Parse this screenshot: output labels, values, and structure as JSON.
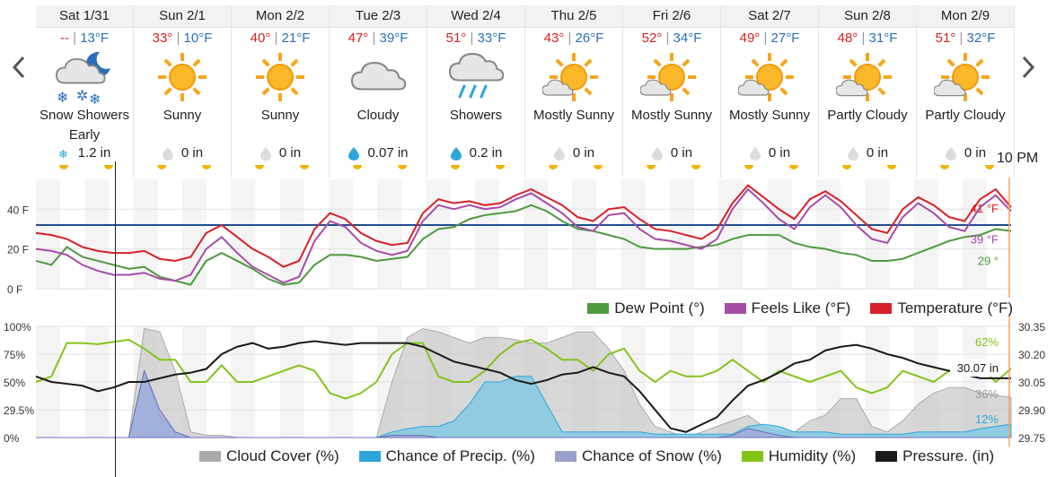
{
  "forecast": {
    "days": [
      {
        "date": "Sat 1/31",
        "hi": "--",
        "lo": "13°F",
        "cond": "Snow Showers",
        "cond2": "Early",
        "precip": "1.2 in",
        "precip_icon": "snowflake-icon",
        "icon": "snow-showers-night-icon"
      },
      {
        "date": "Sun 2/1",
        "hi": "33°",
        "lo": "10°F",
        "cond": "Sunny",
        "cond2": "",
        "precip": "0 in",
        "precip_icon": "dry-drop-icon",
        "icon": "sunny-icon"
      },
      {
        "date": "Mon 2/2",
        "hi": "40°",
        "lo": "21°F",
        "cond": "Sunny",
        "cond2": "",
        "precip": "0 in",
        "precip_icon": "dry-drop-icon",
        "icon": "sunny-icon"
      },
      {
        "date": "Tue 2/3",
        "hi": "47°",
        "lo": "39°F",
        "cond": "Cloudy",
        "cond2": "",
        "precip": "0.07 in",
        "precip_icon": "rain-drop-icon",
        "icon": "cloudy-icon"
      },
      {
        "date": "Wed 2/4",
        "hi": "51°",
        "lo": "33°F",
        "cond": "Showers",
        "cond2": "",
        "precip": "0.2 in",
        "precip_icon": "rain-drop-icon",
        "icon": "showers-icon"
      },
      {
        "date": "Thu 2/5",
        "hi": "43°",
        "lo": "26°F",
        "cond": "Mostly Sunny",
        "cond2": "",
        "precip": "0 in",
        "precip_icon": "dry-drop-icon",
        "icon": "mostly-sunny-icon"
      },
      {
        "date": "Fri 2/6",
        "hi": "52°",
        "lo": "34°F",
        "cond": "Mostly Sunny",
        "cond2": "",
        "precip": "0 in",
        "precip_icon": "dry-drop-icon",
        "icon": "mostly-sunny-icon"
      },
      {
        "date": "Sat 2/7",
        "hi": "49°",
        "lo": "27°F",
        "cond": "Mostly Sunny",
        "cond2": "",
        "precip": "0 in",
        "precip_icon": "dry-drop-icon",
        "icon": "mostly-sunny-icon"
      },
      {
        "date": "Sun 2/8",
        "hi": "48°",
        "lo": "31°F",
        "cond": "Partly Cloudy",
        "cond2": "",
        "precip": "0 in",
        "precip_icon": "dry-drop-icon",
        "icon": "partly-cloudy-icon"
      },
      {
        "date": "Mon 2/9",
        "hi": "51°",
        "lo": "32°F",
        "cond": "Partly Cloudy",
        "cond2": "",
        "precip": "0 in",
        "precip_icon": "dry-drop-icon",
        "icon": "partly-cloudy-icon"
      }
    ],
    "current_time": "10 PM"
  },
  "legend_temp": [
    {
      "label": "Dew Point (°)",
      "color": "#4e9a3f"
    },
    {
      "label": "Feels Like (°F)",
      "color": "#a64ca6"
    },
    {
      "label": "Temperature (°F)",
      "color": "#d7202a"
    }
  ],
  "legend_multi": [
    {
      "label": "Cloud Cover (%)",
      "color": "#aaaaaa"
    },
    {
      "label": "Chance of Precip. (%)",
      "color": "#2ca6d9"
    },
    {
      "label": "Chance of Snow (%)",
      "color": "#9aa0c8"
    },
    {
      "label": "Humidity (%)",
      "color": "#84c31a"
    },
    {
      "label": "Pressure. (in)",
      "color": "#1a1a1a"
    }
  ],
  "chart_data": [
    {
      "type": "line",
      "y_ticks": [
        "40 F",
        "20 F",
        "0 F"
      ],
      "ylim": [
        0,
        55
      ],
      "reference_line": 32,
      "grid": true,
      "legend_position": "bottom-right",
      "current_labels": {
        "temperature": "41 °F",
        "feels_like": "39 °F",
        "dew_point": "29 °"
      },
      "series": [
        {
          "name": "Temperature (°F)",
          "color": "#d7202a",
          "values": [
            28,
            27,
            25,
            21,
            19,
            18,
            18,
            19,
            15,
            14,
            16,
            28,
            32,
            26,
            20,
            16,
            11,
            14,
            30,
            38,
            35,
            28,
            24,
            22,
            23,
            38,
            45,
            43,
            44,
            42,
            43,
            47,
            50,
            46,
            42,
            36,
            34,
            40,
            41,
            35,
            30,
            29,
            27,
            25,
            30,
            43,
            52,
            46,
            40,
            35,
            45,
            49,
            44,
            37,
            30,
            28,
            40,
            46,
            42,
            36,
            34,
            45,
            50,
            41
          ]
        },
        {
          "name": "Feels Like (°F)",
          "color": "#a64ca6",
          "values": [
            20,
            19,
            17,
            12,
            9,
            7,
            7,
            8,
            5,
            4,
            7,
            20,
            26,
            18,
            11,
            7,
            3,
            6,
            24,
            34,
            31,
            23,
            19,
            17,
            19,
            34,
            42,
            40,
            42,
            40,
            41,
            45,
            48,
            43,
            38,
            31,
            29,
            37,
            38,
            30,
            25,
            24,
            22,
            20,
            25,
            40,
            50,
            43,
            35,
            30,
            41,
            47,
            41,
            32,
            25,
            23,
            36,
            43,
            38,
            31,
            29,
            41,
            47,
            39
          ]
        },
        {
          "name": "Dew Point (°)",
          "color": "#4e9a3f",
          "values": [
            14,
            12,
            21,
            16,
            14,
            12,
            10,
            11,
            6,
            4,
            2,
            14,
            18,
            14,
            10,
            5,
            2,
            3,
            12,
            17,
            17,
            16,
            14,
            15,
            16,
            25,
            30,
            31,
            35,
            37,
            38,
            39,
            42,
            39,
            34,
            30,
            29,
            27,
            25,
            21,
            20,
            20,
            20,
            21,
            22,
            25,
            27,
            27,
            27,
            23,
            21,
            20,
            18,
            17,
            14,
            14,
            15,
            18,
            21,
            24,
            26,
            27,
            30,
            29
          ]
        }
      ]
    },
    {
      "type": "area",
      "y_ticks_left": [
        "100%",
        "75%",
        "50%",
        "29.5%",
        "0%"
      ],
      "y_ticks_right": [
        "30.35",
        "30.20",
        "30.05",
        "29.90",
        "29.75"
      ],
      "ylim": [
        0,
        100
      ],
      "ylim_right": [
        29.75,
        30.35
      ],
      "grid": true,
      "legend_position": "bottom",
      "current_labels": {
        "humidity": "62%",
        "pressure": "30.07 in",
        "cloud_cover": "36%",
        "precip": "12%"
      },
      "series": [
        {
          "name": "Cloud Cover (%)",
          "color": "#aaaaaa",
          "values": [
            0,
            0,
            0,
            0,
            0,
            0,
            0,
            98,
            95,
            60,
            5,
            2,
            2,
            0,
            0,
            0,
            0,
            0,
            0,
            0,
            0,
            0,
            0,
            50,
            90,
            98,
            95,
            90,
            85,
            90,
            90,
            88,
            85,
            85,
            90,
            95,
            95,
            80,
            60,
            30,
            10,
            5,
            0,
            5,
            10,
            15,
            20,
            10,
            5,
            5,
            15,
            20,
            35,
            35,
            10,
            5,
            15,
            30,
            40,
            45,
            45,
            40,
            38,
            36
          ]
        },
        {
          "name": "Chance of Precip. (%)",
          "color": "#2ca6d9",
          "values": [
            0,
            0,
            0,
            0,
            0,
            0,
            0,
            60,
            20,
            5,
            0,
            0,
            0,
            0,
            0,
            0,
            0,
            0,
            0,
            0,
            0,
            0,
            0,
            5,
            8,
            10,
            10,
            15,
            30,
            50,
            50,
            55,
            55,
            30,
            5,
            5,
            5,
            5,
            5,
            5,
            3,
            3,
            3,
            3,
            3,
            3,
            10,
            12,
            10,
            5,
            5,
            5,
            3,
            3,
            3,
            3,
            3,
            5,
            5,
            5,
            5,
            8,
            10,
            12
          ]
        },
        {
          "name": "Chance of Snow (%)",
          "color": "#9aa0c8",
          "values": [
            0,
            0,
            0,
            0,
            0,
            0,
            0,
            60,
            25,
            5,
            0,
            0,
            0,
            0,
            0,
            0,
            0,
            0,
            0,
            0,
            0,
            0,
            0,
            2,
            2,
            2,
            0,
            0,
            0,
            0,
            0,
            0,
            0,
            0,
            0,
            0,
            0,
            0,
            0,
            0,
            0,
            0,
            0,
            0,
            0,
            2,
            8,
            5,
            2,
            0,
            0,
            0,
            0,
            0,
            0,
            0,
            0,
            0,
            0,
            0,
            0,
            0,
            0,
            0
          ]
        },
        {
          "name": "Humidity (%)",
          "color": "#84c31a",
          "values": [
            50,
            55,
            85,
            85,
            84,
            86,
            88,
            80,
            70,
            70,
            50,
            50,
            65,
            50,
            50,
            55,
            60,
            65,
            60,
            40,
            35,
            40,
            50,
            75,
            85,
            85,
            55,
            50,
            50,
            60,
            75,
            85,
            88,
            80,
            70,
            70,
            60,
            75,
            80,
            60,
            50,
            60,
            55,
            55,
            60,
            70,
            60,
            50,
            60,
            55,
            50,
            55,
            60,
            45,
            40,
            45,
            60,
            55,
            50,
            60,
            70,
            65,
            50,
            62
          ]
        },
        {
          "name": "Pressure. (in)",
          "color": "#1a1a1a",
          "values": [
            30.08,
            30.05,
            30.04,
            30.03,
            30.0,
            30.02,
            30.05,
            30.05,
            30.07,
            30.09,
            30.1,
            30.12,
            30.2,
            30.24,
            30.26,
            30.23,
            30.24,
            30.26,
            30.27,
            30.26,
            30.25,
            30.26,
            30.26,
            30.26,
            30.26,
            30.24,
            30.2,
            30.16,
            30.14,
            30.12,
            30.1,
            30.06,
            30.04,
            30.06,
            30.09,
            30.1,
            30.13,
            30.1,
            30.08,
            30.0,
            29.9,
            29.8,
            29.78,
            29.82,
            29.86,
            29.95,
            30.03,
            30.06,
            30.1,
            30.15,
            30.17,
            30.22,
            30.24,
            30.25,
            30.23,
            30.2,
            30.18,
            30.15,
            30.13,
            30.11,
            30.09,
            30.07,
            30.07,
            30.07
          ]
        }
      ]
    }
  ]
}
